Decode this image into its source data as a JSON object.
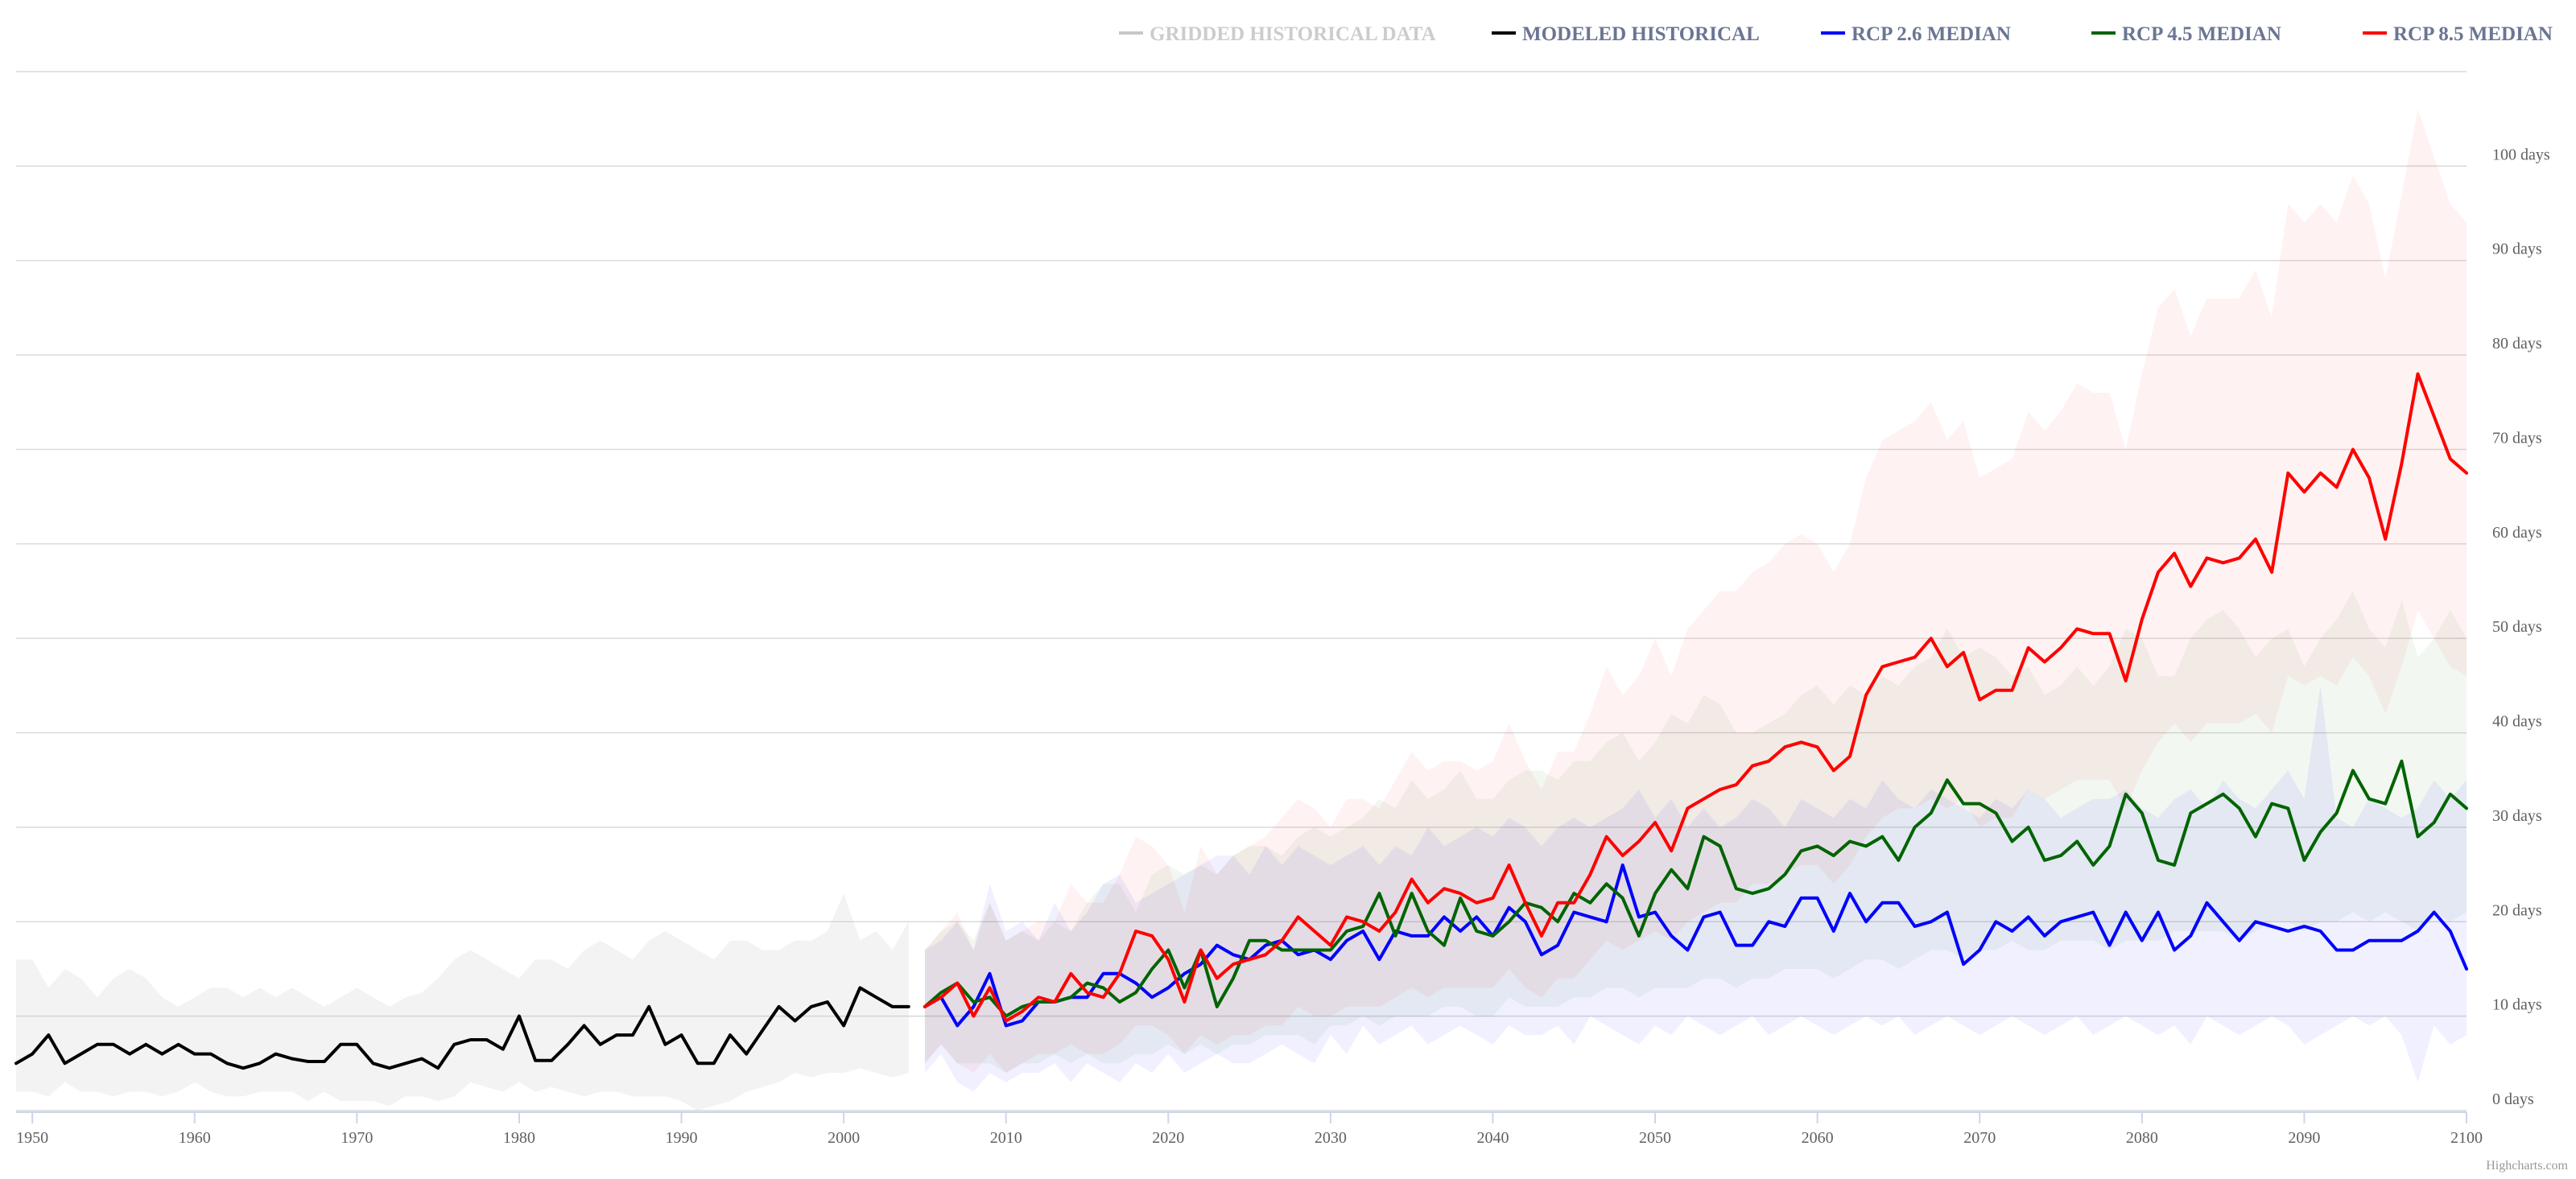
{
  "chart_data": {
    "type": "line",
    "title": "",
    "xlabel": "",
    "ylabel": "",
    "xlim": [
      1949,
      2100
    ],
    "ylim": [
      0,
      110
    ],
    "y_tick_values": [
      0,
      10,
      20,
      30,
      40,
      50,
      60,
      70,
      80,
      90,
      100
    ],
    "y_tick_labels": [
      "0 days",
      "10 days",
      "20 days",
      "30 days",
      "40 days",
      "50 days",
      "60 days",
      "70 days",
      "80 days",
      "90 days",
      "100 days"
    ],
    "x_tick_values": [
      1950,
      1960,
      1970,
      1980,
      1990,
      2000,
      2010,
      2020,
      2030,
      2040,
      2050,
      2060,
      2070,
      2080,
      2090,
      2100
    ],
    "x_tick_labels": [
      "1950",
      "1960",
      "1970",
      "1980",
      "1990",
      "2000",
      "2010",
      "2020",
      "2030",
      "2040",
      "2050",
      "2060",
      "2070",
      "2080",
      "2090",
      "2100"
    ],
    "grid": true,
    "legend_position": "top-right",
    "credits": "Highcharts.com",
    "series": [
      {
        "key": "gridded",
        "name": "GRIDDED HISTORICAL DATA",
        "color": "#c8c8c8",
        "legend_dim": true,
        "x": [],
        "values": []
      },
      {
        "key": "modeled",
        "name": "MODELED HISTORICAL",
        "color": "#000000",
        "x_start": 1949,
        "values": [
          5,
          6,
          8,
          5,
          6,
          7,
          7,
          6,
          7,
          6,
          7,
          6,
          6,
          5,
          4.5,
          5,
          6,
          5.5,
          5.2,
          5.2,
          7,
          7,
          5,
          4.5,
          5,
          5.5,
          4.5,
          7,
          7.5,
          7.5,
          6.5,
          10,
          5.3,
          5.3,
          7,
          9,
          7,
          8,
          8,
          11,
          7,
          8,
          5,
          5,
          8,
          6,
          8.5,
          11,
          9.5,
          11,
          11.5,
          9,
          13,
          12,
          11,
          11
        ],
        "band": {
          "color": "#c8c8c8",
          "opacity": 0.22,
          "low": [
            2,
            2,
            1.5,
            3,
            2,
            2,
            1.5,
            2,
            2,
            1.5,
            2,
            3,
            2,
            1.5,
            1.5,
            2,
            2,
            2,
            1,
            2,
            1,
            1,
            1,
            0.5,
            1.5,
            1.5,
            1,
            1.5,
            3,
            2.5,
            2,
            3,
            2,
            2.5,
            2,
            1.5,
            2,
            2,
            1.5,
            1.5,
            1.5,
            1,
            0,
            0.5,
            1,
            2,
            2.5,
            3,
            4,
            3.5,
            4,
            4,
            4.5,
            4,
            3.5,
            4
          ],
          "high": [
            16,
            16,
            13,
            15,
            14,
            12,
            14,
            15,
            14,
            12,
            11,
            12,
            13,
            13,
            12,
            13,
            12,
            13,
            12,
            11,
            12,
            13,
            12,
            11,
            12,
            12.5,
            14,
            16,
            17,
            16,
            15,
            14,
            16,
            16,
            15,
            17,
            18,
            17,
            16,
            18,
            19,
            18,
            17,
            16,
            18,
            18,
            17,
            17,
            18,
            18,
            19,
            23,
            18,
            19,
            17,
            20
          ]
        }
      },
      {
        "key": "rcp26",
        "name": "RCP 2.6 MEDIAN",
        "color": "#0000ff",
        "x_start": 2005,
        "values": [
          11,
          12,
          9,
          11,
          14.5,
          9,
          9.5,
          11.5,
          11.5,
          12,
          12,
          14.5,
          14.5,
          13.5,
          12,
          13,
          14.5,
          15.5,
          17.5,
          16.5,
          16,
          17.5,
          18,
          16.5,
          17,
          16,
          18,
          19,
          16,
          19,
          18.5,
          18.5,
          20.5,
          19,
          20.5,
          18.5,
          21.5,
          20,
          16.5,
          17.5,
          21,
          20.5,
          20,
          26,
          20.5,
          21,
          18.5,
          17,
          20.5,
          21,
          17.5,
          17.5,
          20,
          19.5,
          22.5,
          22.5,
          19,
          23,
          20,
          22,
          22,
          19.5,
          20,
          21,
          15.5,
          17,
          20,
          19,
          20.5,
          18.5,
          20,
          20.5,
          21,
          17.5,
          21,
          18,
          21,
          17,
          18.5,
          22,
          20,
          18,
          20,
          19.5,
          19,
          19.5,
          19,
          17,
          17,
          18,
          18,
          18,
          19,
          21,
          19,
          15
        ]
      },
      {
        "key": "rcp45",
        "name": "RCP 4.5 MEDIAN",
        "color": "#006400",
        "x_start": 2005,
        "values": [
          11,
          12.5,
          13.5,
          11.5,
          12,
          10,
          11,
          11.5,
          11.5,
          12,
          13.5,
          13,
          11.5,
          12.5,
          15,
          17,
          13,
          17,
          11,
          14,
          18,
          18,
          17,
          17,
          17,
          17,
          19,
          19.5,
          23,
          18.5,
          23,
          19,
          17.5,
          22.5,
          19,
          18.5,
          20,
          22,
          21.5,
          20,
          23,
          22,
          24,
          22.5,
          18.5,
          23,
          25.5,
          23.5,
          29,
          28,
          23.5,
          23,
          23.5,
          25,
          27.5,
          28,
          27,
          28.5,
          28,
          29,
          26.5,
          30,
          31.5,
          35,
          32.5,
          32.5,
          31.5,
          28.5,
          30,
          26.5,
          27,
          28.5,
          26,
          28,
          33.5,
          31.5,
          26.5,
          26,
          31.5,
          32.5,
          33.5,
          32,
          29,
          32.5,
          32,
          26.5,
          29.5,
          31.5,
          36,
          33,
          32.5,
          37,
          29,
          30.5,
          33.5,
          32
        ]
      },
      {
        "key": "rcp85",
        "name": "RCP 8.5 MEDIAN",
        "color": "#ff0000",
        "x_start": 2005,
        "values": [
          11,
          12,
          13.5,
          10,
          13,
          9.5,
          10.5,
          12,
          11.5,
          14.5,
          12.5,
          12,
          14.5,
          19,
          18.5,
          16,
          11.5,
          17,
          14,
          15.5,
          16,
          16.5,
          18,
          20.5,
          19,
          17.5,
          20.5,
          20,
          19,
          21,
          24.5,
          22,
          23.5,
          23,
          22,
          22.5,
          26,
          22,
          18.5,
          22,
          22,
          25,
          29,
          27,
          28.5,
          30.5,
          27.5,
          32,
          33,
          34,
          34.5,
          36.5,
          37,
          38.5,
          39,
          38.5,
          36,
          37.5,
          44,
          47,
          47.5,
          48,
          50,
          47,
          48.5,
          43.5,
          44.5,
          44.5,
          49,
          47.5,
          49,
          51,
          50.5,
          50.5,
          45.5,
          52,
          57,
          59,
          55.5,
          58.5,
          58,
          58.5,
          60.5,
          57,
          67.5,
          65.5,
          67.5,
          66,
          70,
          67,
          60.5,
          68.5,
          78,
          73.5,
          69,
          67.5
        ]
      }
    ],
    "rcp_bands": [
      {
        "key": "rcp26_band",
        "color": "#0000ff",
        "opacity": 0.06,
        "x_start": 2005,
        "low": [
          4,
          6,
          3,
          2,
          4,
          3,
          4,
          4,
          5,
          3,
          5,
          4,
          3,
          5,
          4,
          6,
          4,
          5,
          6,
          5,
          5,
          6,
          7,
          6,
          5,
          8,
          6,
          9,
          7,
          8,
          9,
          7,
          8,
          9,
          8,
          7,
          9,
          8,
          8,
          9,
          7,
          10,
          9,
          8,
          7,
          9,
          8,
          10,
          9,
          8,
          9,
          10,
          8,
          9,
          10,
          9,
          8,
          9,
          10,
          9,
          10,
          8,
          9,
          10,
          9,
          8,
          9,
          10,
          9,
          8,
          9,
          10,
          8,
          9,
          10,
          9,
          8,
          9,
          7,
          10,
          9,
          8,
          9,
          10,
          9,
          7,
          8,
          9,
          10,
          9,
          10,
          8,
          3,
          9,
          7,
          8
        ],
        "high": [
          17,
          18,
          20,
          17,
          24,
          19,
          20,
          18,
          22,
          19,
          21,
          24,
          25,
          22,
          23,
          24,
          25,
          26,
          27,
          27,
          25,
          28,
          26,
          28,
          27,
          26,
          27,
          28,
          26,
          28,
          27,
          30,
          28,
          29,
          30,
          29,
          31,
          30,
          28,
          30,
          31,
          30,
          31,
          32,
          34,
          31,
          33,
          30,
          32,
          30,
          31,
          33,
          32,
          30,
          33,
          32,
          31,
          33,
          32,
          35,
          33,
          32,
          34,
          33,
          32,
          31,
          33,
          32,
          34,
          33,
          31,
          32,
          33,
          33,
          34,
          32,
          31,
          33,
          34,
          32,
          35,
          33,
          32,
          34,
          36,
          33,
          45,
          31,
          30,
          33,
          32,
          31,
          32,
          35,
          33,
          35
        ]
      },
      {
        "key": "rcp45_band",
        "color": "#006400",
        "opacity": 0.05,
        "x_start": 2005,
        "low": [
          5,
          7,
          5,
          5,
          5,
          4,
          5,
          5,
          6,
          5,
          6,
          5,
          5,
          6,
          6,
          7,
          6,
          7,
          6,
          7,
          7,
          8,
          8,
          8,
          7,
          9,
          9,
          10,
          9,
          10,
          10,
          10,
          11,
          11,
          10,
          10,
          12,
          11,
          11,
          11,
          12,
          12,
          13,
          13,
          12,
          13,
          13,
          13,
          14,
          14,
          13,
          14,
          14,
          15,
          15,
          15,
          14,
          15,
          16,
          16,
          15,
          16,
          17,
          17,
          16,
          17,
          17,
          18,
          17,
          17,
          18,
          18,
          18,
          17,
          18,
          18,
          18,
          19,
          19,
          19,
          19,
          18,
          19,
          20,
          20,
          19,
          20,
          20,
          21,
          20,
          21,
          20,
          19,
          21,
          20,
          21
        ],
        "high": [
          17,
          19,
          20,
          18,
          22,
          18,
          19,
          18,
          20,
          19,
          22,
          24,
          24,
          21,
          25,
          26,
          25,
          26,
          25,
          27,
          28,
          28,
          27,
          29,
          30,
          29,
          30,
          31,
          33,
          32,
          35,
          33,
          34,
          36,
          33,
          33,
          35,
          36,
          36,
          35,
          37,
          37,
          39,
          40,
          37,
          39,
          42,
          41,
          44,
          43,
          40,
          40,
          41,
          42,
          44,
          45,
          43,
          45,
          44,
          46,
          45,
          47,
          48,
          51,
          48,
          49,
          48,
          46,
          47,
          44,
          45,
          47,
          45,
          47,
          51,
          50,
          46,
          46,
          50,
          52,
          53,
          51,
          48,
          50,
          51,
          47,
          50,
          52,
          55,
          51,
          49,
          54,
          48,
          50,
          53,
          50
        ]
      },
      {
        "key": "rcp85_band",
        "color": "#ff0000",
        "opacity": 0.05,
        "x_start": 2005,
        "low": [
          5,
          7,
          5,
          4,
          6,
          4,
          5,
          6,
          6,
          7,
          6,
          6,
          7,
          9,
          9,
          8,
          6,
          8,
          7,
          8,
          8,
          9,
          9,
          11,
          10,
          10,
          11,
          11,
          11,
          12,
          13,
          12,
          13,
          13,
          13,
          13,
          15,
          13,
          12,
          14,
          14,
          16,
          18,
          17,
          18,
          19,
          18,
          20,
          21,
          22,
          22,
          24,
          24,
          25,
          26,
          26,
          24,
          26,
          29,
          31,
          32,
          32,
          33,
          32,
          33,
          30,
          31,
          31,
          34,
          33,
          34,
          35,
          35,
          35,
          32,
          36,
          39,
          41,
          39,
          41,
          41,
          41,
          42,
          40,
          46,
          45,
          46,
          45,
          48,
          46,
          42,
          47,
          53,
          50,
          47,
          46
        ],
        "high": [
          17,
          19,
          21,
          17,
          22,
          18,
          19,
          20,
          20,
          24,
          22,
          22,
          25,
          29,
          28,
          26,
          21,
          28,
          25,
          27,
          28,
          29,
          31,
          33,
          32,
          30,
          33,
          33,
          32,
          35,
          38,
          36,
          37,
          37,
          36,
          37,
          41,
          37,
          34,
          38,
          38,
          42,
          47,
          44,
          46,
          50,
          46,
          51,
          53,
          55,
          55,
          57,
          58,
          60,
          61,
          60,
          57,
          60,
          67,
          71,
          72,
          73,
          75,
          71,
          73,
          67,
          68,
          69,
          74,
          72,
          74,
          77,
          76,
          76,
          70,
          78,
          85,
          87,
          82,
          86,
          86,
          86,
          89,
          84,
          96,
          94,
          96,
          94,
          99,
          96,
          88,
          97,
          106,
          101,
          96,
          94
        ]
      }
    ]
  }
}
